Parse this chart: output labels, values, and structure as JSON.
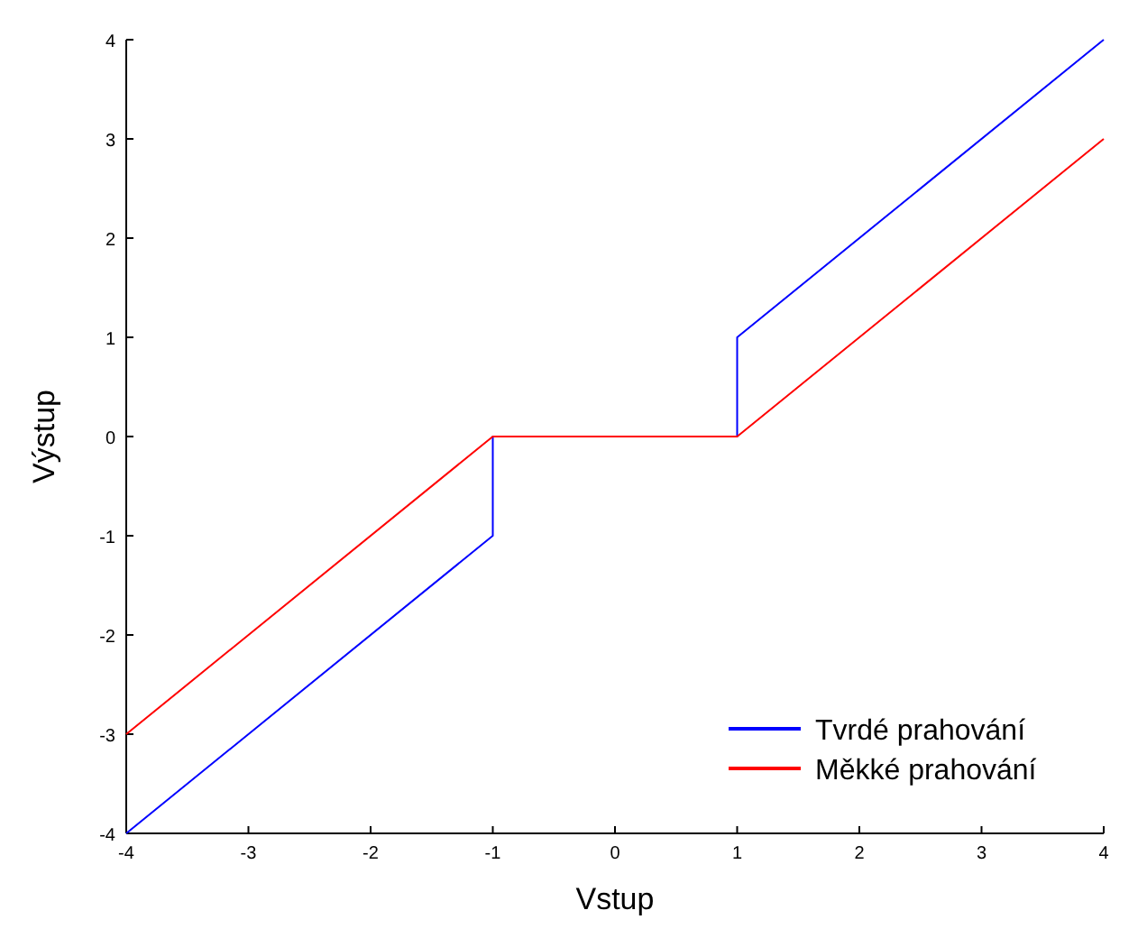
{
  "chart_data": {
    "type": "line",
    "xlabel": "Vstup",
    "ylabel": "Výstup",
    "xlim": [
      -4,
      4
    ],
    "ylim": [
      -4,
      4
    ],
    "xticks": [
      -4,
      -3,
      -2,
      -1,
      0,
      1,
      2,
      3,
      4
    ],
    "yticks": [
      -4,
      -3,
      -2,
      -1,
      0,
      1,
      2,
      3,
      4
    ],
    "grid": false,
    "legend": "bottom right",
    "marker": "none",
    "line_style": "solid",
    "series": [
      {
        "name": "Tvrdé prahování",
        "color": "#0000ff",
        "x": [
          -4,
          -1,
          -1,
          1,
          1,
          4
        ],
        "values": [
          -4,
          -1,
          0,
          0,
          1,
          4
        ]
      },
      {
        "name": "Měkké prahování",
        "color": "#ff0000",
        "x": [
          -4,
          -1,
          1,
          4
        ],
        "values": [
          -3,
          0,
          0,
          3
        ]
      }
    ]
  }
}
